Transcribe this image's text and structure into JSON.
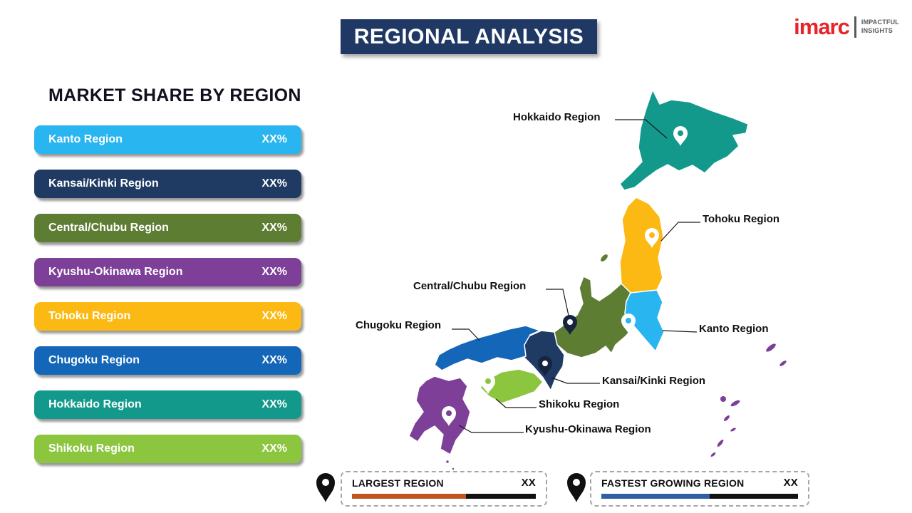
{
  "title": "REGIONAL ANALYSIS",
  "logo": {
    "brand": "imarc",
    "tagline1": "IMPACTFUL",
    "tagline2": "INSIGHTS"
  },
  "market_share": {
    "heading": "MARKET SHARE BY REGION",
    "rows": [
      {
        "label": "Kanto Region",
        "value": "XX%"
      },
      {
        "label": "Kansai/Kinki Region",
        "value": "XX%"
      },
      {
        "label": "Central/Chubu Region",
        "value": "XX%"
      },
      {
        "label": "Kyushu-Okinawa Region",
        "value": "XX%"
      },
      {
        "label": "Tohoku Region",
        "value": "XX%"
      },
      {
        "label": "Chugoku Region",
        "value": "XX%"
      },
      {
        "label": "Hokkaido Region",
        "value": "XX%"
      },
      {
        "label": "Shikoku Region",
        "value": "XX%"
      }
    ]
  },
  "region_colors": {
    "kanto": "#29b5f0",
    "kansai": "#1f3b63",
    "chubu": "#5d7d33",
    "kyushu_okinawa": "#7d3f98",
    "tohoku": "#fdb913",
    "chugoku": "#1466b8",
    "hokkaido": "#12998c",
    "shikoku": "#8cc63e"
  },
  "colors": {
    "title_bg": "#1f3864",
    "pin_dark": "#16243f",
    "callout_line": "#1a1a1a",
    "legend_largest_bar": "#c0561c",
    "legend_fastest_bar": "#2e5fa3",
    "legend_bar_base": "#111111"
  },
  "map_labels": [
    {
      "text": "Hokkaido Region"
    },
    {
      "text": "Tohoku Region"
    },
    {
      "text": "Central/Chubu Region"
    },
    {
      "text": "Chugoku Region"
    },
    {
      "text": "Kanto Region"
    },
    {
      "text": "Kansai/Kinki Region"
    },
    {
      "text": "Shikoku Region"
    },
    {
      "text": "Kyushu-Okinawa Region"
    }
  ],
  "legend": {
    "items": [
      {
        "label": "LARGEST REGION",
        "value": "XX",
        "fill_pct": 62
      },
      {
        "label": "FASTEST GROWING REGION",
        "value": "XX",
        "fill_pct": 55
      }
    ]
  }
}
